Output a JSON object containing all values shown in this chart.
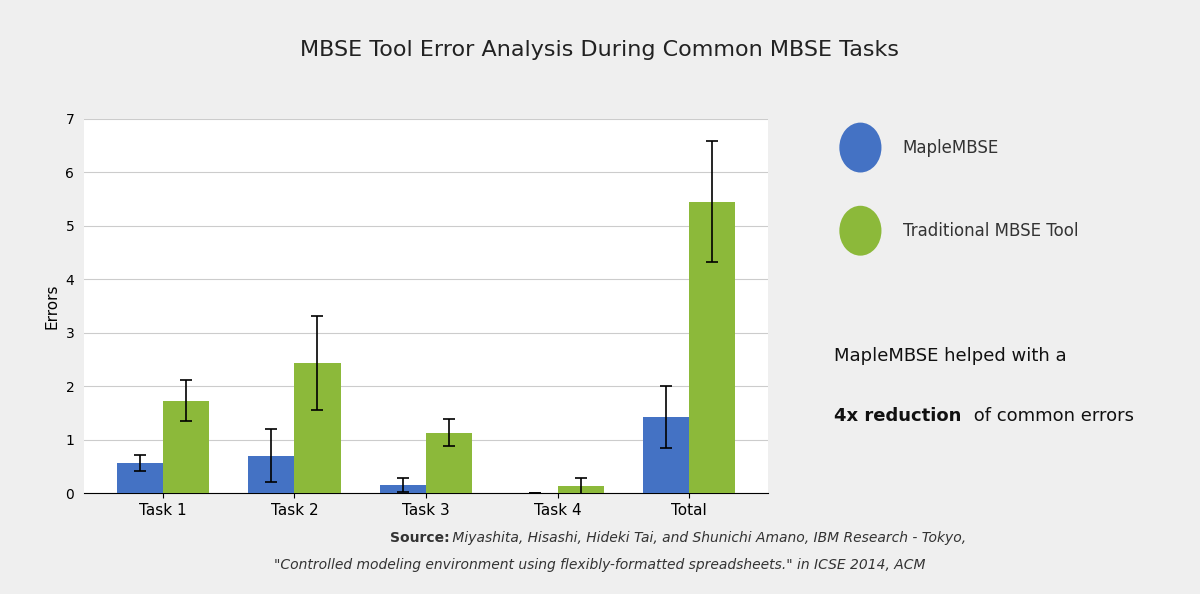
{
  "title": "MBSE Tool Error Analysis During Common MBSE Tasks",
  "ylabel": "Errors",
  "categories": [
    "Task 1",
    "Task 2",
    "Task 3",
    "Task 4",
    "Total"
  ],
  "maple_values": [
    0.57,
    0.7,
    0.15,
    0.0,
    1.42
  ],
  "maple_errors": [
    0.15,
    0.5,
    0.13,
    0.0,
    0.58
  ],
  "traditional_values": [
    1.73,
    2.43,
    1.13,
    0.13,
    5.45
  ],
  "traditional_errors": [
    0.38,
    0.88,
    0.25,
    0.15,
    1.13
  ],
  "maple_color": "#4472C4",
  "traditional_color": "#8CB93A",
  "ylim": [
    0,
    7
  ],
  "yticks": [
    0,
    1,
    2,
    3,
    4,
    5,
    6,
    7
  ],
  "bar_width": 0.35,
  "background_color": "#FFFFFF",
  "grid_color": "#CCCCCC",
  "legend_labels": [
    "MapleMBSE",
    "Traditional MBSE Tool"
  ],
  "annotation_line1": "MapleMBSE helped with a",
  "annotation_bold": "4x reduction",
  "annotation_normal": " of common errors",
  "source_label": "Source:",
  "source_line1": " Miyashita, Hisashi, Hideki Tai, and Shunichi Amano, IBM Research - Tokyo,",
  "source_line2": "\"Controlled modeling environment using flexibly-formatted spreadsheets.\" in ICSE 2014, ACM",
  "title_bar_color": "#D0D0D0",
  "fig_bg_color": "#EFEFEF"
}
